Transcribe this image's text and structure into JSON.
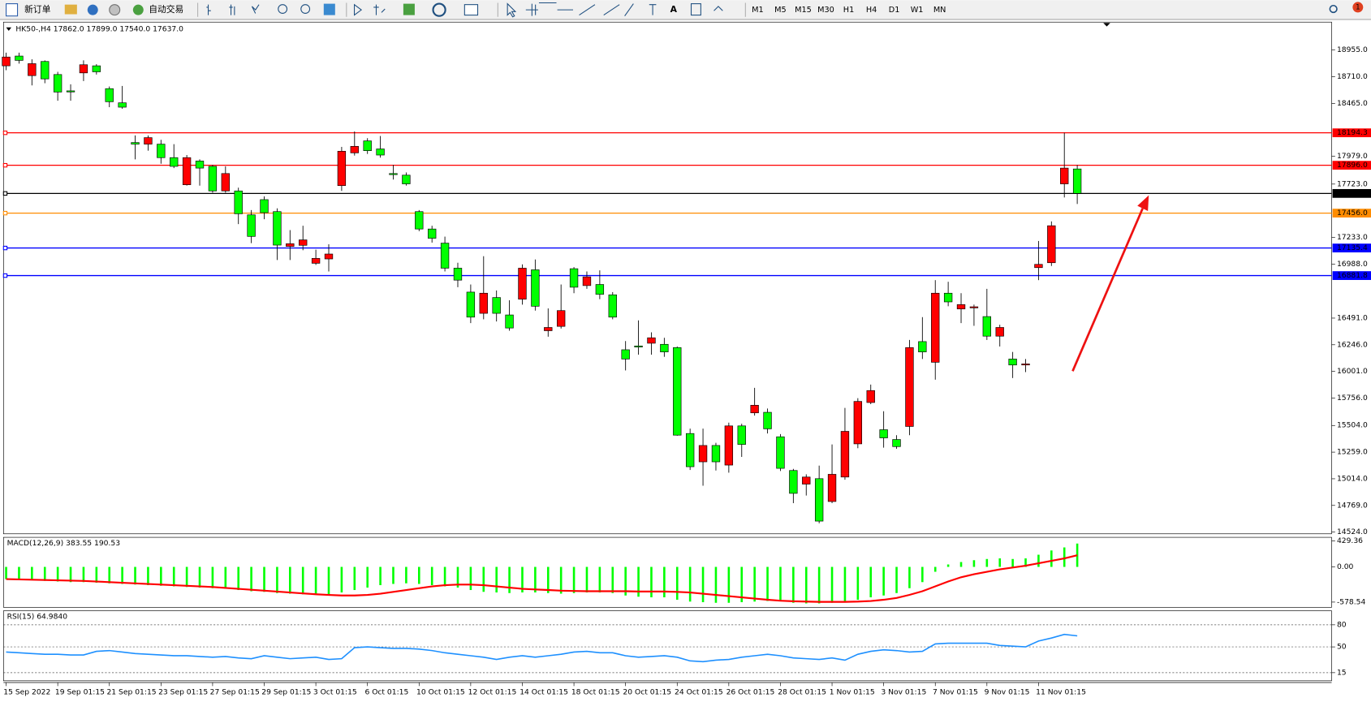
{
  "toolbar": {
    "new_order": "新订单",
    "auto_trading": "自动交易",
    "timeframes": [
      "M1",
      "M5",
      "M15",
      "M30",
      "H1",
      "H4",
      "D1",
      "W1",
      "MN"
    ],
    "badge": "1"
  },
  "chart_data": [
    {
      "type": "candlestick",
      "info": "HK50-,H4  17862.0 17899.0 17540.0 17637.0",
      "bull_color": "#ff0000",
      "bear_color": "#00ff00",
      "ylim": [
        14508,
        19212
      ],
      "yticks": [
        {
          "value": 18955,
          "label": "18955.0"
        },
        {
          "value": 18710,
          "label": "18710.0"
        },
        {
          "value": 18465,
          "label": "18465.0"
        },
        {
          "value": 17979,
          "label": "17979.0"
        },
        {
          "value": 17723,
          "label": "17723.0"
        },
        {
          "value": 17233,
          "label": "17233.0"
        },
        {
          "value": 16988,
          "label": "16988.0"
        },
        {
          "value": 16491,
          "label": "16491.0"
        },
        {
          "value": 16246,
          "label": "16246.0"
        },
        {
          "value": 16001,
          "label": "16001.0"
        },
        {
          "value": 15756,
          "label": "15756.0"
        },
        {
          "value": 15504,
          "label": "15504.0"
        },
        {
          "value": 15259,
          "label": "15259.0"
        },
        {
          "value": 15014,
          "label": "15014.0"
        },
        {
          "value": 14769,
          "label": "14769.0"
        },
        {
          "value": 14524,
          "label": "14524.0"
        }
      ],
      "levels": [
        {
          "price": 18194.3,
          "color": "#ff0000"
        },
        {
          "price": {
            "value": 17896,
            "label": "17896.0"
          },
          "color": "#ff0000"
        },
        {
          "price": {
            "value": 17637,
            "label": "17637.0"
          },
          "color": "#000000"
        },
        {
          "price": {
            "value": 17456,
            "label": "17456.0"
          },
          "color": "#ff8c00"
        },
        {
          "price": 17135.4,
          "color": "#0000ff"
        },
        {
          "price": 16881.8,
          "color": "#0000ff"
        }
      ],
      "categories": [
        "15 Sep 2022",
        null,
        null,
        null,
        "19 Sep 01:15",
        null,
        null,
        null,
        "21 Sep 01:15",
        null,
        null,
        null,
        "23 Sep 01:15",
        null,
        null,
        null,
        "27 Sep 01:15",
        null,
        null,
        null,
        "29 Sep 01:15",
        null,
        null,
        null,
        "3 Oct 01:15",
        null,
        null,
        null,
        "6 Oct 01:15",
        null,
        null,
        null,
        "10 Oct 01:15",
        null,
        null,
        null,
        "12 Oct 01:15",
        null,
        null,
        null,
        "14 Oct 01:15",
        null,
        null,
        null,
        "18 Oct 01:15",
        null,
        null,
        null,
        "20 Oct 01:15",
        null,
        null,
        null,
        "24 Oct 01:15",
        null,
        null,
        null,
        "26 Oct 01:15",
        null,
        null,
        null,
        "28 Oct 01:15",
        null,
        null,
        null,
        "1 Nov 01:15",
        null,
        null,
        null,
        "3 Nov 01:15",
        null,
        null,
        null,
        "7 Nov 01:15",
        null,
        null,
        null,
        "9 Nov 01:15",
        null,
        null,
        null,
        "11 Nov 01:15",
        null,
        null,
        null
      ],
      "open": [
        18810,
        18900,
        18720,
        18850,
        18730,
        18580,
        18745,
        18810,
        18600,
        18470,
        18105,
        18090,
        18090,
        17966,
        17717,
        17935,
        17886,
        17660,
        17660,
        17440,
        17580,
        17470,
        17150,
        17160,
        16995,
        17035,
        17709,
        18010,
        18120,
        18046,
        17820,
        17805,
        17470,
        17310,
        17180,
        16950,
        16730,
        16535,
        16680,
        16520,
        16665,
        16935,
        16375,
        16415,
        16945,
        16790,
        16800,
        16705,
        16200,
        16235,
        16260,
        16250,
        16220,
        15430,
        15170,
        15320,
        15140,
        15500,
        15620,
        15625,
        15400,
        15090,
        14965,
        15015,
        14805,
        15030,
        15335,
        15715,
        15465,
        15375,
        15495,
        16275,
        16085,
        16720,
        16575,
        16585,
        16505,
        16325,
        16115,
        16060,
        16955,
        17000,
        17725,
        17862
      ],
      "high": [
        18931,
        18931,
        18870,
        18860,
        18755,
        18640,
        18860,
        18825,
        18620,
        18625,
        18170,
        18170,
        18130,
        18090,
        17990,
        17950,
        17900,
        17886,
        17690,
        17484,
        17610,
        17500,
        17300,
        17340,
        17120,
        17170,
        18065,
        18207,
        18145,
        18165,
        17900,
        17830,
        17484,
        17340,
        17240,
        17000,
        16800,
        17060,
        16745,
        16655,
        16985,
        17030,
        16580,
        16800,
        16960,
        16920,
        16930,
        16730,
        16280,
        16470,
        16360,
        16310,
        16230,
        15475,
        15475,
        15345,
        15530,
        15520,
        15850,
        15660,
        15425,
        15105,
        15055,
        15135,
        15330,
        15665,
        15755,
        15880,
        15635,
        15415,
        16290,
        16500,
        16840,
        16825,
        16720,
        16615,
        16760,
        16430,
        16180,
        16115,
        17200,
        17380,
        18195,
        17899
      ],
      "low": [
        18770,
        18830,
        18630,
        18650,
        18489,
        18489,
        18670,
        18730,
        18430,
        18415,
        17950,
        18030,
        17910,
        17870,
        17709,
        17709,
        17644,
        17644,
        17355,
        17180,
        17400,
        17025,
        17025,
        17115,
        16980,
        16920,
        17660,
        17985,
        18000,
        17966,
        17765,
        17709,
        17290,
        17185,
        16920,
        16775,
        16445,
        16480,
        16460,
        16375,
        16615,
        16560,
        16320,
        16395,
        16720,
        16760,
        16665,
        16480,
        16010,
        16155,
        16155,
        16135,
        15410,
        15095,
        14950,
        15090,
        15070,
        15215,
        15595,
        15430,
        15085,
        14790,
        14860,
        14605,
        14790,
        15005,
        15295,
        15700,
        15300,
        15290,
        15415,
        16115,
        15925,
        16600,
        16445,
        16420,
        16290,
        16230,
        15940,
        15995,
        16840,
        16970,
        17600,
        17540
      ],
      "close": [
        18891,
        18860,
        18830,
        18690,
        18569,
        18570,
        18820,
        18755,
        18480,
        18430,
        18090,
        18150,
        17966,
        17886,
        17966,
        17870,
        17660,
        17820,
        17450,
        17242,
        17460,
        17162,
        17175,
        17210,
        17040,
        17080,
        18025,
        18070,
        18030,
        17990,
        17810,
        17725,
        17310,
        17225,
        16950,
        16840,
        16500,
        16720,
        16535,
        16400,
        16950,
        16600,
        16405,
        16560,
        16775,
        16870,
        16710,
        16500,
        16115,
        16225,
        16310,
        16180,
        15415,
        15125,
        15320,
        15170,
        15500,
        15330,
        15690,
        15473,
        15110,
        14880,
        15030,
        14625,
        15055,
        15450,
        15725,
        15825,
        15390,
        15310,
        16220,
        16180,
        16720,
        16640,
        16615,
        16595,
        16325,
        16405,
        16060,
        16070,
        16985,
        17340,
        17870,
        17637
      ]
    },
    {
      "type": "macd",
      "title": "MACD(12,26,9) 383.55 190.53",
      "color": "#00ff00",
      "signal_color": "#ff0000",
      "ylim": [
        -664,
        486
      ],
      "yticks": [
        429.36,
        {
          "value": 0,
          "label": "0.00"
        },
        -578.54
      ],
      "values": [
        -200,
        -210,
        -220,
        -230,
        -240,
        -250,
        -250,
        -260,
        -270,
        -280,
        -290,
        -300,
        -310,
        -320,
        -330,
        -340,
        -350,
        -360,
        -380,
        -400,
        -410,
        -430,
        -440,
        -450,
        -460,
        -470,
        -420,
        -380,
        -340,
        -300,
        -280,
        -270,
        -280,
        -300,
        -320,
        -340,
        -380,
        -410,
        -420,
        -430,
        -420,
        -420,
        -430,
        -440,
        -430,
        -420,
        -420,
        -430,
        -470,
        -490,
        -500,
        -500,
        -540,
        -570,
        -580,
        -590,
        -590,
        -580,
        -570,
        -560,
        -560,
        -590,
        -600,
        -600,
        -590,
        -570,
        -540,
        -500,
        -470,
        -430,
        -350,
        -250,
        -80,
        40,
        80,
        110,
        130,
        140,
        130,
        140,
        200,
        270,
        320,
        383.55
      ],
      "signal": [
        -200,
        -205,
        -210,
        -215,
        -220,
        -225,
        -230,
        -240,
        -250,
        -260,
        -270,
        -280,
        -290,
        -300,
        -310,
        -320,
        -330,
        -345,
        -360,
        -375,
        -390,
        -405,
        -420,
        -435,
        -450,
        -460,
        -470,
        -470,
        -460,
        -440,
        -410,
        -380,
        -350,
        -320,
        -300,
        -290,
        -290,
        -300,
        -320,
        -340,
        -360,
        -370,
        -380,
        -390,
        -395,
        -400,
        -400,
        -400,
        -400,
        -405,
        -405,
        -405,
        -410,
        -420,
        -440,
        -460,
        -480,
        -500,
        -520,
        -540,
        -555,
        -565,
        -570,
        -575,
        -575,
        -575,
        -570,
        -560,
        -540,
        -510,
        -460,
        -400,
        -320,
        -240,
        -170,
        -120,
        -80,
        -40,
        -10,
        20,
        60,
        100,
        140,
        190.53
      ]
    },
    {
      "type": "line",
      "title": "RSI(15) 64.9840",
      "color": "#1e90ff",
      "grid": true,
      "ylim": [
        4,
        99
      ],
      "yticks": [
        80,
        50,
        15
      ],
      "values": [
        43,
        42,
        41,
        40,
        40,
        39,
        39,
        44,
        45,
        43,
        41,
        40,
        39,
        38,
        38,
        37,
        36,
        37,
        35,
        34,
        38,
        36,
        34,
        35,
        36,
        33,
        34,
        49,
        50,
        49,
        48,
        48,
        47,
        45,
        42,
        40,
        38,
        36,
        33,
        36,
        38,
        36,
        38,
        40,
        43,
        44,
        42,
        42,
        38,
        36,
        37,
        38,
        36,
        31,
        30,
        32,
        33,
        36,
        38,
        40,
        38,
        35,
        34,
        33,
        35,
        32,
        40,
        44,
        46,
        45,
        43,
        44,
        54,
        55,
        55,
        55,
        55,
        52,
        51,
        50,
        58,
        62,
        67,
        64.984
      ]
    }
  ]
}
